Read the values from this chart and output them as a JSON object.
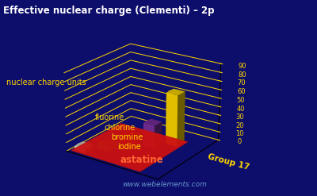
{
  "title": "Effective nuclear charge (Clementi) – 2p",
  "ylabel": "nuclear charge units",
  "xlabel": "Group 17",
  "elements": [
    "fluorine",
    "chlorine",
    "bromine",
    "iodine",
    "astatine"
  ],
  "values": [
    5.1,
    6.12,
    15.03,
    26.42,
    60.1
  ],
  "bar_colors": [
    "#d8d8c0",
    "#228B22",
    "#8B1500",
    "#7B2FA0",
    "#FFD700"
  ],
  "platform_color": "#CC1111",
  "background_color": "#0D0D6B",
  "grid_color": "#FFD700",
  "title_color": "#FFFFFF",
  "label_color": "#FFD700",
  "axis_color": "#FFD700",
  "astatine_color": "#FF6633",
  "watermark_color": "#6699CC",
  "ylim": [
    0,
    90
  ],
  "yticks": [
    0,
    10,
    20,
    30,
    40,
    50,
    60,
    70,
    80,
    90
  ],
  "elev": 22,
  "azim": -55
}
